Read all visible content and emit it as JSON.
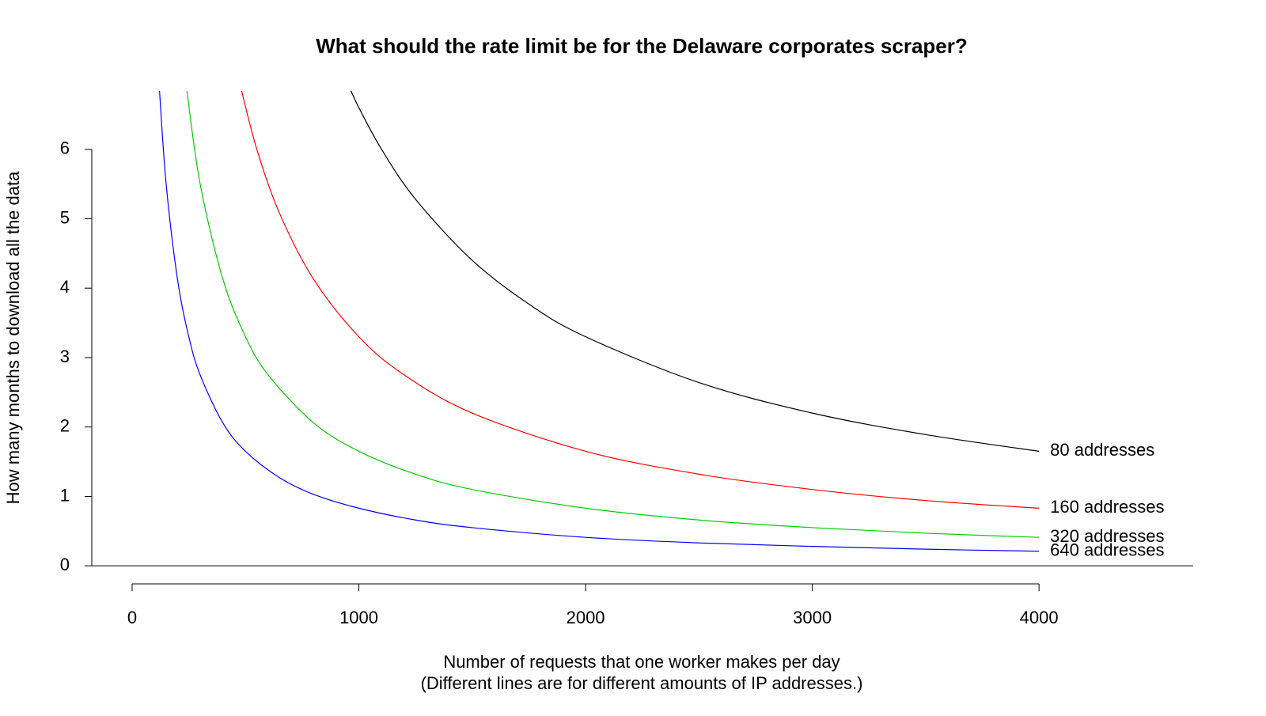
{
  "chart_data": {
    "type": "line",
    "title": "What should the rate limit be for the Delaware corporates scraper?",
    "x_label": "Number of requests that one worker makes per day",
    "x_label_2": "(Different lines are for different amounts of IP addresses.)",
    "y_label": "How many months to download all the data",
    "xlim": [
      -178,
      4680
    ],
    "ylim": [
      -0.26,
      6.84
    ],
    "xticks": [
      0,
      1000,
      2000,
      3000,
      4000
    ],
    "yticks": [
      0,
      1,
      2,
      3,
      4,
      5,
      6
    ],
    "series": [
      {
        "name": "80 addresses",
        "color": "#000000",
        "x": [
          960,
          1000,
          1100,
          1250,
          1500,
          1750,
          2000,
          2500,
          3000,
          3500,
          4000
        ],
        "values": [
          6.88,
          6.6,
          6.0,
          5.28,
          4.4,
          3.77,
          3.3,
          2.64,
          2.2,
          1.89,
          1.65
        ]
      },
      {
        "name": "160 addresses",
        "color": "#ff0000",
        "x": [
          480,
          550,
          650,
          800,
          1000,
          1200,
          1500,
          2000,
          2500,
          3000,
          3500,
          4000
        ],
        "values": [
          6.88,
          6.0,
          5.08,
          4.13,
          3.3,
          2.75,
          2.2,
          1.65,
          1.32,
          1.1,
          0.94,
          0.83
        ]
      },
      {
        "name": "320 addresses",
        "color": "#00cd00",
        "x": [
          240,
          300,
          400,
          500,
          600,
          800,
          1000,
          1250,
          1500,
          2000,
          2500,
          3000,
          3500,
          4000
        ],
        "values": [
          6.88,
          5.5,
          4.13,
          3.3,
          2.75,
          2.06,
          1.65,
          1.32,
          1.1,
          0.83,
          0.66,
          0.55,
          0.47,
          0.41
        ]
      },
      {
        "name": "640 addresses",
        "color": "#0000ff",
        "x": [
          120,
          150,
          200,
          250,
          300,
          400,
          500,
          650,
          800,
          1000,
          1250,
          1500,
          2000,
          2500,
          3000,
          3500,
          4000
        ],
        "values": [
          6.88,
          5.5,
          4.13,
          3.3,
          2.75,
          2.06,
          1.65,
          1.27,
          1.03,
          0.83,
          0.66,
          0.55,
          0.41,
          0.33,
          0.28,
          0.24,
          0.21
        ]
      }
    ]
  }
}
